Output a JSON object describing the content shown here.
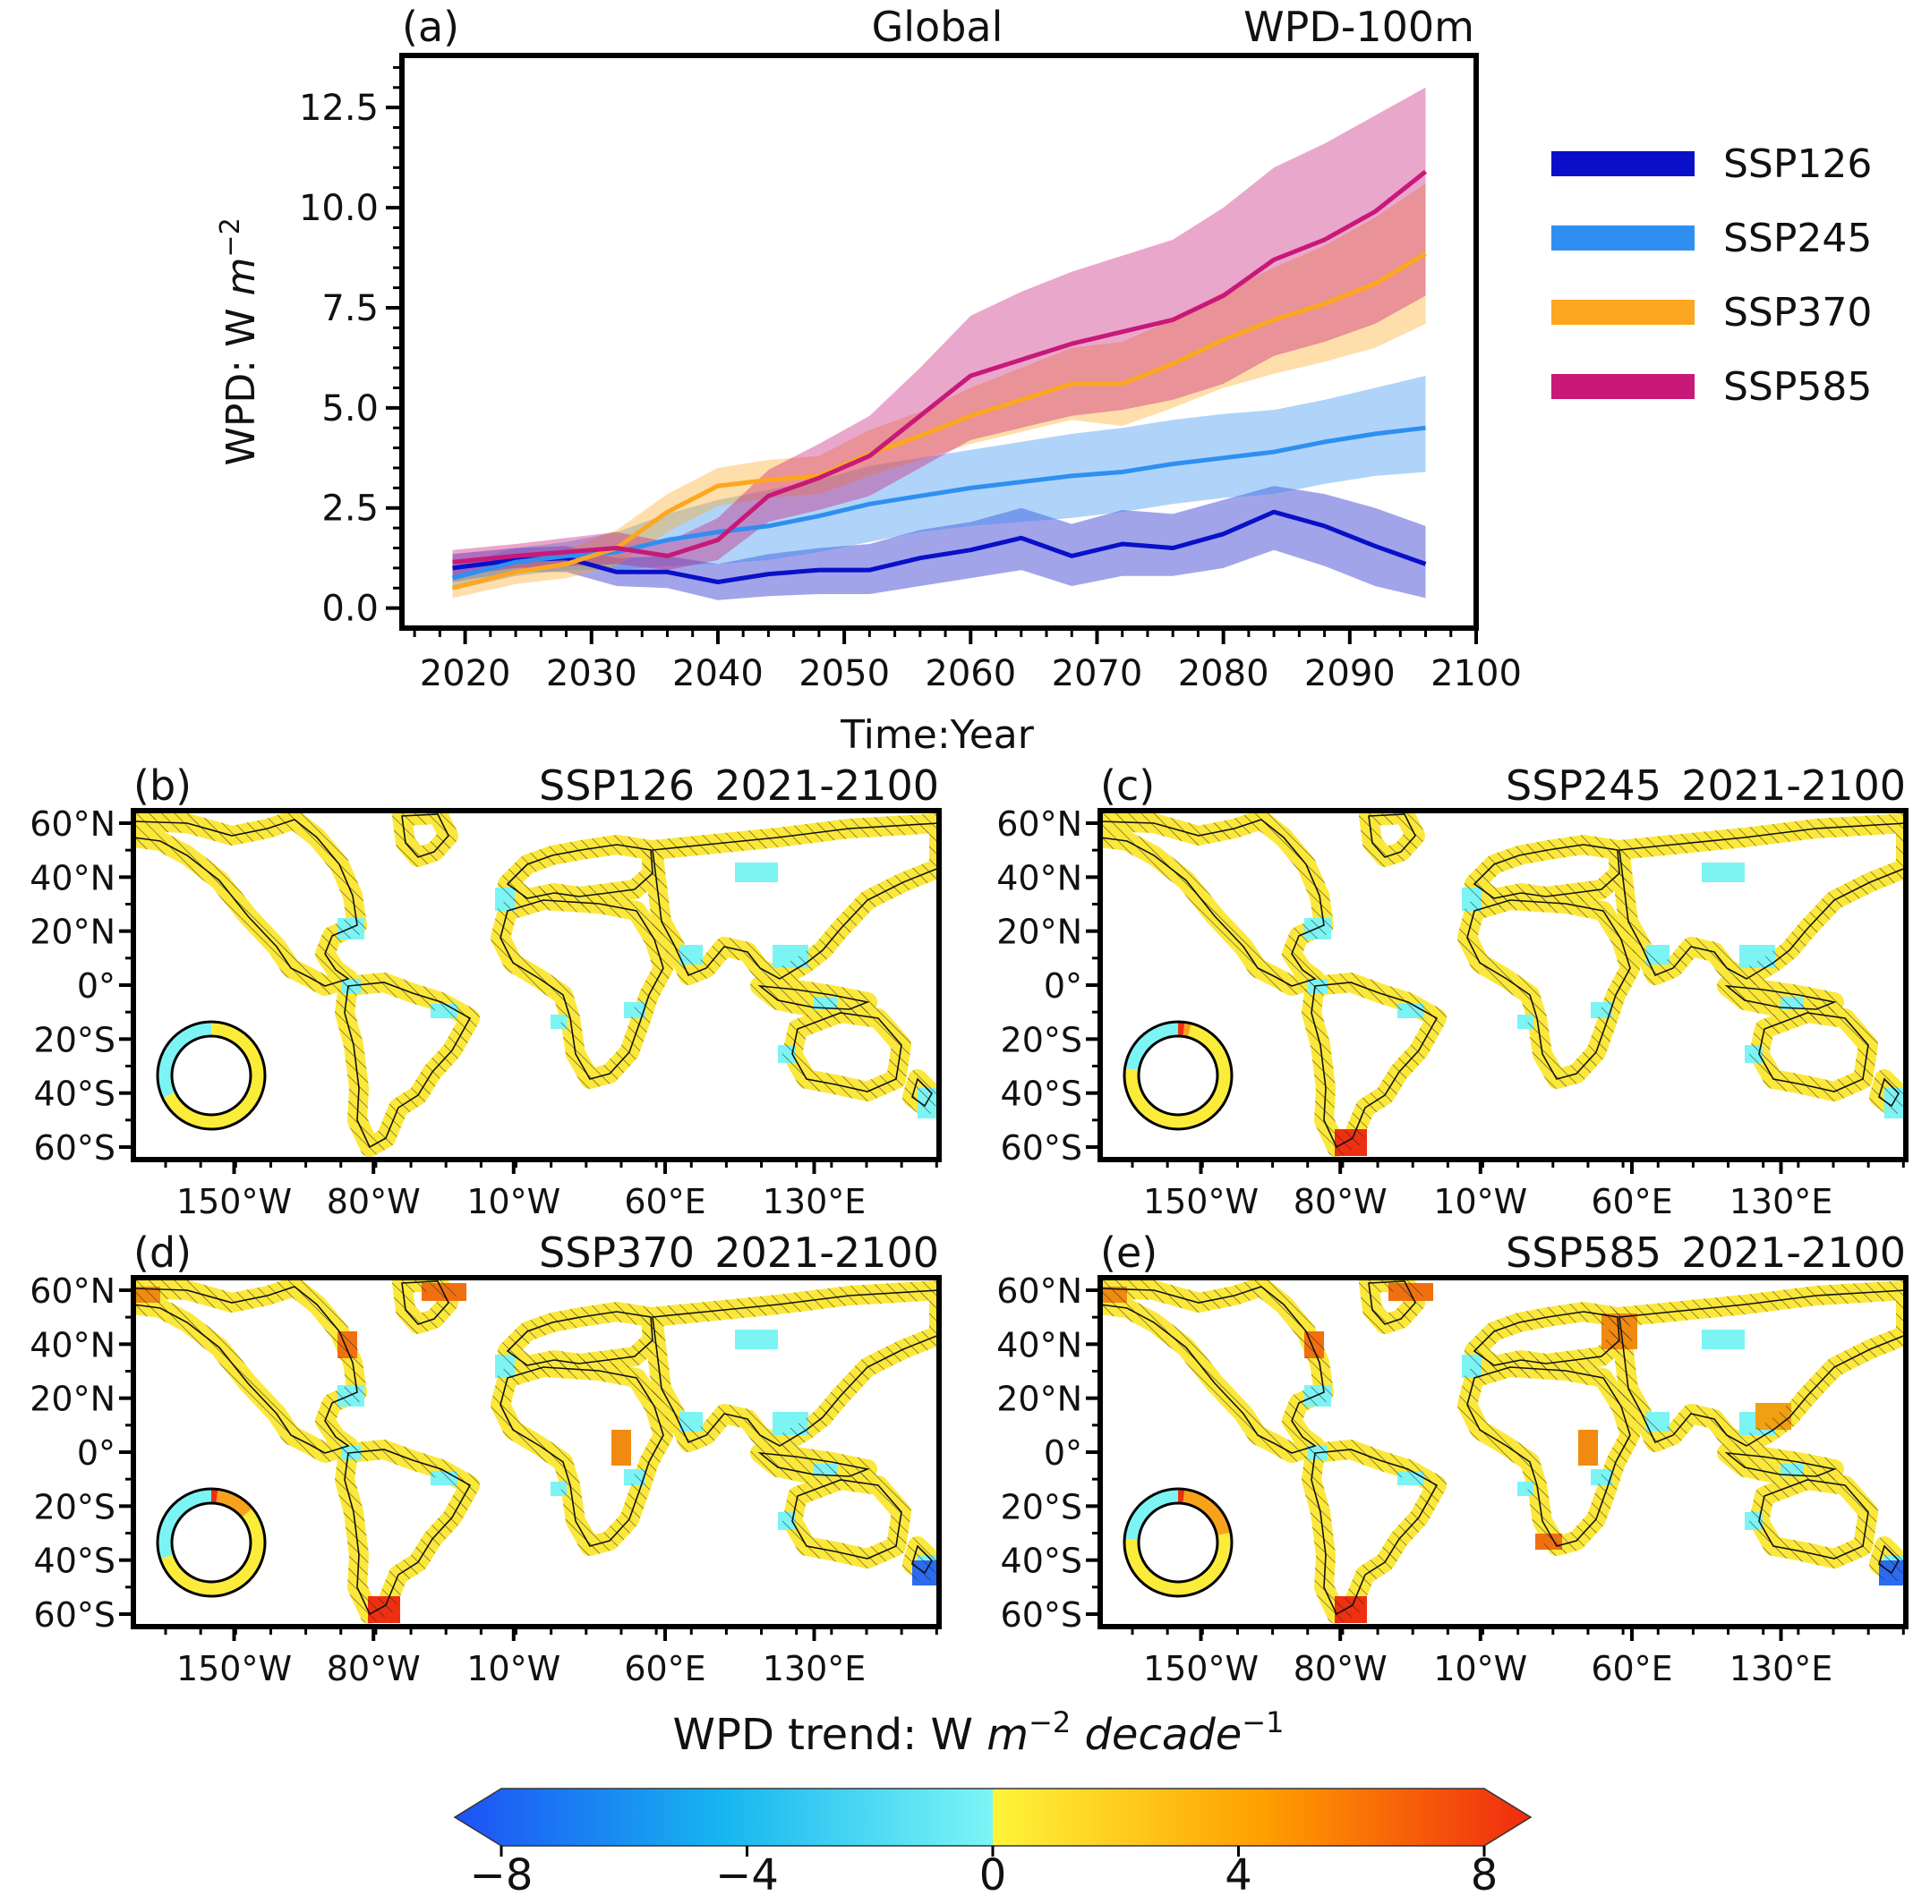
{
  "chart_data": [
    {
      "type": "line",
      "panel_label": "(a)",
      "title": "Global",
      "subtitle": "WPD-100m",
      "xlabel": "Time:Year",
      "ylabel": "WPD: W m⁻²",
      "xlim": [
        2015,
        2100
      ],
      "ylim": [
        -0.5,
        13.8
      ],
      "xticks": [
        2020,
        2030,
        2040,
        2050,
        2060,
        2070,
        2080,
        2090,
        2100
      ],
      "yticks": [
        0.0,
        2.5,
        5.0,
        7.5,
        10.0,
        12.5
      ],
      "ytick_labels": [
        "0.0",
        "2.5",
        "5.0",
        "7.5",
        "10.0",
        "12.5"
      ],
      "legend_position": "right",
      "band": "shaded spread around each series",
      "series": [
        {
          "name": "SSP126",
          "color": "#0a10c8",
          "x": [
            2019,
            2024,
            2028,
            2032,
            2036,
            2040,
            2044,
            2048,
            2052,
            2056,
            2060,
            2064,
            2068,
            2072,
            2076,
            2080,
            2084,
            2088,
            2092,
            2096
          ],
          "values": [
            1.0,
            1.2,
            1.25,
            0.9,
            0.9,
            0.65,
            0.85,
            0.95,
            0.95,
            1.25,
            1.45,
            1.75,
            1.3,
            1.6,
            1.5,
            1.85,
            2.4,
            2.05,
            1.55,
            1.1
          ],
          "lower": [
            0.65,
            0.9,
            0.9,
            0.55,
            0.5,
            0.2,
            0.3,
            0.35,
            0.35,
            0.55,
            0.75,
            0.95,
            0.55,
            0.8,
            0.8,
            1.0,
            1.45,
            1.05,
            0.55,
            0.25
          ],
          "upper": [
            1.35,
            1.5,
            1.55,
            1.25,
            1.3,
            1.1,
            1.35,
            1.5,
            1.6,
            1.95,
            2.15,
            2.5,
            2.1,
            2.45,
            2.35,
            2.7,
            3.05,
            2.85,
            2.5,
            2.05
          ]
        },
        {
          "name": "SSP245",
          "color": "#2f8ff0",
          "x": [
            2019,
            2024,
            2028,
            2032,
            2036,
            2040,
            2044,
            2048,
            2052,
            2056,
            2060,
            2064,
            2068,
            2072,
            2076,
            2080,
            2084,
            2088,
            2092,
            2096
          ],
          "values": [
            0.75,
            1.15,
            1.3,
            1.4,
            1.7,
            1.9,
            2.05,
            2.3,
            2.6,
            2.8,
            3.0,
            3.15,
            3.3,
            3.4,
            3.6,
            3.75,
            3.9,
            4.15,
            4.35,
            4.5
          ],
          "lower": [
            0.45,
            0.8,
            0.95,
            0.95,
            1.05,
            1.1,
            1.2,
            1.4,
            1.65,
            1.9,
            2.05,
            2.15,
            2.25,
            2.4,
            2.6,
            2.75,
            2.85,
            3.1,
            3.3,
            3.4
          ],
          "upper": [
            1.05,
            1.5,
            1.65,
            1.9,
            2.35,
            2.7,
            2.95,
            3.2,
            3.55,
            3.75,
            3.95,
            4.15,
            4.35,
            4.5,
            4.7,
            4.85,
            4.95,
            5.2,
            5.5,
            5.8
          ]
        },
        {
          "name": "SSP370",
          "color": "#fca71f",
          "x": [
            2019,
            2024,
            2028,
            2032,
            2036,
            2040,
            2044,
            2048,
            2052,
            2056,
            2060,
            2064,
            2068,
            2072,
            2076,
            2080,
            2084,
            2088,
            2092,
            2096
          ],
          "values": [
            0.5,
            0.9,
            1.1,
            1.5,
            2.4,
            3.05,
            3.2,
            3.3,
            3.85,
            4.3,
            4.8,
            5.2,
            5.6,
            5.6,
            6.1,
            6.7,
            7.2,
            7.6,
            8.1,
            8.85
          ],
          "lower": [
            0.25,
            0.6,
            0.75,
            1.05,
            1.9,
            2.55,
            2.75,
            2.85,
            3.3,
            3.7,
            4.1,
            4.4,
            4.7,
            4.55,
            5.0,
            5.5,
            5.85,
            6.15,
            6.5,
            7.1
          ],
          "upper": [
            0.8,
            1.2,
            1.45,
            1.95,
            2.85,
            3.5,
            3.7,
            3.8,
            4.45,
            4.9,
            5.5,
            6.0,
            6.5,
            6.65,
            7.2,
            7.9,
            8.5,
            9.05,
            9.75,
            10.6
          ]
        },
        {
          "name": "SSP585",
          "color": "#c81878",
          "x": [
            2019,
            2024,
            2028,
            2032,
            2036,
            2040,
            2044,
            2048,
            2052,
            2056,
            2060,
            2064,
            2068,
            2072,
            2076,
            2080,
            2084,
            2088,
            2092,
            2096
          ],
          "values": [
            1.15,
            1.3,
            1.4,
            1.5,
            1.3,
            1.7,
            2.8,
            3.25,
            3.8,
            4.8,
            5.8,
            6.2,
            6.6,
            6.9,
            7.2,
            7.8,
            8.7,
            9.2,
            9.9,
            10.9
          ],
          "lower": [
            0.8,
            1.0,
            1.05,
            1.1,
            0.95,
            1.2,
            2.15,
            2.45,
            2.8,
            3.5,
            4.2,
            4.5,
            4.8,
            4.95,
            5.2,
            5.6,
            6.3,
            6.65,
            7.1,
            7.8
          ],
          "upper": [
            1.45,
            1.6,
            1.75,
            1.9,
            1.65,
            2.25,
            3.45,
            4.1,
            4.8,
            6.0,
            7.3,
            7.9,
            8.4,
            8.8,
            9.2,
            10.0,
            11.0,
            11.6,
            12.3,
            13.0
          ]
        }
      ]
    },
    {
      "type": "heatmap",
      "kind": "map",
      "panels": [
        {
          "label": "(b)",
          "scenario": "SSP126",
          "period": "2021-2100",
          "ring": {
            "blue_frac": 0.32,
            "orange_frac": 0.0,
            "red_frac": 0.0
          }
        },
        {
          "label": "(c)",
          "scenario": "SSP245",
          "period": "2021-2100",
          "ring": {
            "blue_frac": 0.23,
            "orange_frac": 0.02,
            "red_frac": 0.02
          }
        },
        {
          "label": "(d)",
          "scenario": "SSP370",
          "period": "2021-2100",
          "ring": {
            "blue_frac": 0.3,
            "orange_frac": 0.12,
            "red_frac": 0.02
          }
        },
        {
          "label": "(e)",
          "scenario": "SSP585",
          "period": "2021-2100",
          "ring": {
            "blue_frac": 0.24,
            "orange_frac": 0.2,
            "red_frac": 0.02
          }
        }
      ],
      "lat_ticks": [
        "60°N",
        "40°N",
        "20°N",
        "0°",
        "20°S",
        "40°S",
        "60°S"
      ],
      "lon_ticks": [
        "150°W",
        "80°W",
        "10°W",
        "60°E",
        "130°E"
      ],
      "colorbar": {
        "label": "WPD trend: W m⁻² decade⁻¹",
        "ticks": [
          "−8",
          "−4",
          "0",
          "4",
          "8"
        ],
        "range": [
          -8,
          8
        ],
        "colors": [
          "#1e50f5",
          "#16b6f0",
          "#7cf6f6",
          "#fff53a",
          "#ffa000",
          "#ef2a10"
        ]
      }
    }
  ]
}
